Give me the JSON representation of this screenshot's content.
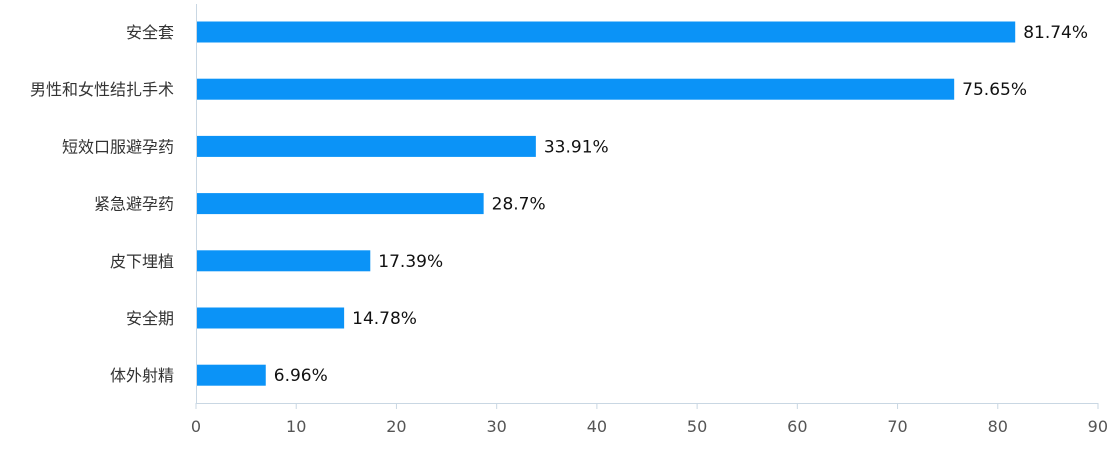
{
  "chart_data": {
    "type": "bar",
    "orientation": "horizontal",
    "title": "",
    "xlabel": "",
    "ylabel": "",
    "categories": [
      "安全套",
      "男性和女性结扎手术",
      "短效口服避孕药",
      "紧急避孕药",
      "皮下埋植",
      "安全期",
      "体外射精"
    ],
    "values": [
      81.74,
      75.65,
      33.91,
      28.7,
      17.39,
      14.78,
      6.96
    ],
    "value_labels": [
      "81.74%",
      "75.65%",
      "33.91%",
      "28.7%",
      "17.39%",
      "14.78%",
      "6.96%"
    ],
    "xlim": [
      0,
      90
    ],
    "ticks": [
      0,
      10,
      20,
      30,
      40,
      50,
      60,
      70,
      80,
      90
    ],
    "tick_labels": [
      "0",
      "10",
      "20",
      "30",
      "40",
      "50",
      "60",
      "70",
      "80",
      "90"
    ],
    "grid": false,
    "legend": "none",
    "bar_color": "#0b93f7",
    "axis_color": "#c9d7e3"
  }
}
